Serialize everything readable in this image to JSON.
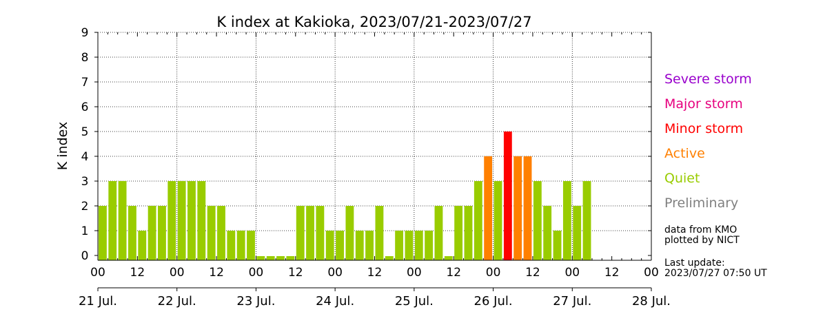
{
  "chart_data": {
    "type": "bar",
    "title": "K index at Kakioka, 2023/07/21-2023/07/27",
    "ylabel": "K index",
    "ylim": [
      0,
      9
    ],
    "yticks": [
      "0",
      "1",
      "2",
      "3",
      "4",
      "5",
      "6",
      "7",
      "8",
      "9"
    ],
    "grid": true,
    "x_tick_labels": [
      "00",
      "12",
      "00",
      "12",
      "00",
      "12",
      "00",
      "12",
      "00",
      "12",
      "00",
      "12",
      "00",
      "12",
      "00"
    ],
    "date_labels": [
      "21 Jul.",
      "22 Jul.",
      "23 Jul.",
      "24 Jul.",
      "25 Jul.",
      "26 Jul.",
      "27 Jul.",
      "28 Jul."
    ],
    "interval_hours": 3,
    "values": [
      2,
      3,
      3,
      2,
      1,
      2,
      2,
      3,
      3,
      3,
      3,
      2,
      2,
      1,
      1,
      1,
      0,
      0,
      0,
      0,
      2,
      2,
      2,
      1,
      1,
      2,
      1,
      1,
      2,
      0,
      1,
      1,
      1,
      1,
      2,
      0,
      2,
      2,
      3,
      4,
      3,
      5,
      4,
      4,
      3,
      2,
      1,
      3,
      2,
      3
    ],
    "colors": {
      "quiet": "#99cc00",
      "active": "#ff8000",
      "minor_storm": "#ff0000",
      "major_storm": "#e6007e",
      "severe_storm": "#9900cc",
      "preliminary": "#808080"
    }
  },
  "legend": [
    {
      "label": "Severe storm",
      "color": "#9900cc"
    },
    {
      "label": "Major storm",
      "color": "#e6007e"
    },
    {
      "label": "Minor storm",
      "color": "#ff0000"
    },
    {
      "label": "Active",
      "color": "#ff8000"
    },
    {
      "label": "Quiet",
      "color": "#99cc00"
    },
    {
      "label": "Preliminary",
      "color": "#808080"
    }
  ],
  "source_note": [
    "data from KMO",
    "plotted by NICT"
  ],
  "update_note": [
    "Last update:",
    "2023/07/27 07:50 UT"
  ]
}
